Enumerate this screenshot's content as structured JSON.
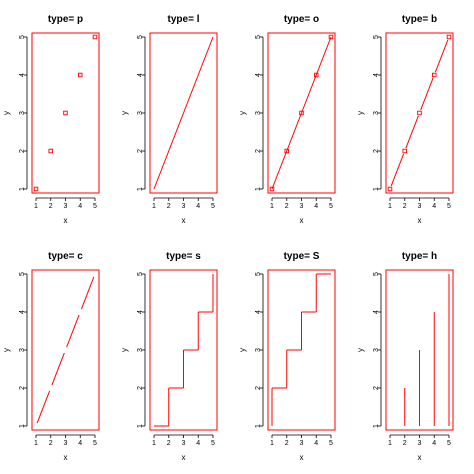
{
  "colors": {
    "series": "#ff0000",
    "axis": "#000000",
    "background": "#ffffff"
  },
  "chart_data": [
    {
      "type": "scatter",
      "title": "type= p",
      "xlabel": "x",
      "ylabel": "y",
      "x": [
        1,
        2,
        3,
        4,
        5
      ],
      "y": [
        1,
        2,
        3,
        4,
        5
      ],
      "xlim": [
        1,
        5
      ],
      "ylim": [
        1,
        5
      ],
      "xticks": [
        "1",
        "2",
        "3",
        "4",
        "5"
      ],
      "yticks": [
        "1",
        "2",
        "3",
        "4",
        "5"
      ],
      "grid": false,
      "plot_type": "p"
    },
    {
      "type": "line",
      "title": "type= l",
      "xlabel": "x",
      "ylabel": "y",
      "x": [
        1,
        2,
        3,
        4,
        5
      ],
      "y": [
        1,
        2,
        3,
        4,
        5
      ],
      "xlim": [
        1,
        5
      ],
      "ylim": [
        1,
        5
      ],
      "xticks": [
        "1",
        "2",
        "3",
        "4",
        "5"
      ],
      "yticks": [
        "1",
        "2",
        "3",
        "4",
        "5"
      ],
      "grid": false,
      "plot_type": "l"
    },
    {
      "type": "line",
      "title": "type= o",
      "xlabel": "x",
      "ylabel": "y",
      "x": [
        1,
        2,
        3,
        4,
        5
      ],
      "y": [
        1,
        2,
        3,
        4,
        5
      ],
      "xlim": [
        1,
        5
      ],
      "ylim": [
        1,
        5
      ],
      "xticks": [
        "1",
        "2",
        "3",
        "4",
        "5"
      ],
      "yticks": [
        "1",
        "2",
        "3",
        "4",
        "5"
      ],
      "grid": false,
      "plot_type": "o"
    },
    {
      "type": "line",
      "title": "type= b",
      "xlabel": "x",
      "ylabel": "y",
      "x": [
        1,
        2,
        3,
        4,
        5
      ],
      "y": [
        1,
        2,
        3,
        4,
        5
      ],
      "xlim": [
        1,
        5
      ],
      "ylim": [
        1,
        5
      ],
      "xticks": [
        "1",
        "2",
        "3",
        "4",
        "5"
      ],
      "yticks": [
        "1",
        "2",
        "3",
        "4",
        "5"
      ],
      "grid": false,
      "plot_type": "b"
    },
    {
      "type": "line",
      "title": "type= c",
      "xlabel": "x",
      "ylabel": "y",
      "x": [
        1,
        2,
        3,
        4,
        5
      ],
      "y": [
        1,
        2,
        3,
        4,
        5
      ],
      "xlim": [
        1,
        5
      ],
      "ylim": [
        1,
        5
      ],
      "xticks": [
        "1",
        "2",
        "3",
        "4",
        "5"
      ],
      "yticks": [
        "1",
        "2",
        "3",
        "4",
        "5"
      ],
      "grid": false,
      "plot_type": "c"
    },
    {
      "type": "line",
      "title": "type= s",
      "xlabel": "x",
      "ylabel": "y",
      "x": [
        1,
        2,
        3,
        4,
        5
      ],
      "y": [
        1,
        2,
        3,
        4,
        5
      ],
      "xlim": [
        1,
        5
      ],
      "ylim": [
        1,
        5
      ],
      "xticks": [
        "1",
        "2",
        "3",
        "4",
        "5"
      ],
      "yticks": [
        "1",
        "2",
        "3",
        "4",
        "5"
      ],
      "grid": false,
      "plot_type": "s"
    },
    {
      "type": "line",
      "title": "type= S",
      "xlabel": "x",
      "ylabel": "y",
      "x": [
        1,
        2,
        3,
        4,
        5
      ],
      "y": [
        1,
        2,
        3,
        4,
        5
      ],
      "xlim": [
        1,
        5
      ],
      "ylim": [
        1,
        5
      ],
      "xticks": [
        "1",
        "2",
        "3",
        "4",
        "5"
      ],
      "yticks": [
        "1",
        "2",
        "3",
        "4",
        "5"
      ],
      "grid": false,
      "plot_type": "S"
    },
    {
      "type": "bar",
      "title": "type= h",
      "xlabel": "x",
      "ylabel": "y",
      "x": [
        1,
        2,
        3,
        4,
        5
      ],
      "y": [
        1,
        2,
        3,
        4,
        5
      ],
      "xlim": [
        1,
        5
      ],
      "ylim": [
        1,
        5
      ],
      "xticks": [
        "1",
        "2",
        "3",
        "4",
        "5"
      ],
      "yticks": [
        "1",
        "2",
        "3",
        "4",
        "5"
      ],
      "grid": false,
      "plot_type": "h"
    }
  ]
}
